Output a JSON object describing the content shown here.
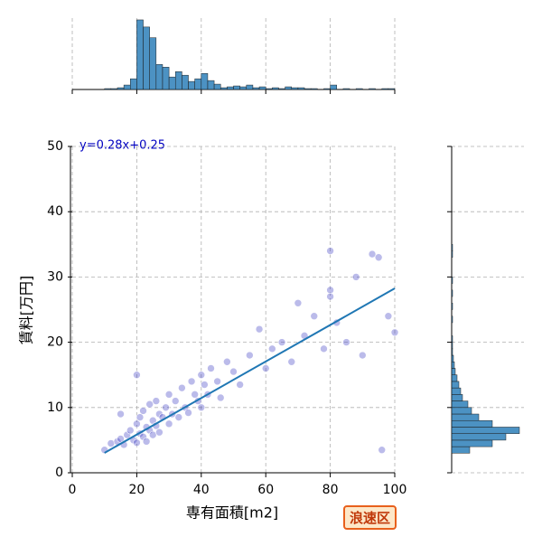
{
  "chart_data": [
    {
      "type": "scatter",
      "xlabel": "専有面積[m2]",
      "ylabel": "賃料[万円]",
      "xlim": [
        0,
        100
      ],
      "ylim": [
        0,
        50
      ],
      "xticks": [
        0,
        20,
        40,
        60,
        80,
        100
      ],
      "yticks": [
        0,
        10,
        20,
        30,
        40,
        50
      ],
      "grid": true,
      "series": [
        {
          "color": "#3b3bc4",
          "x": [
            10,
            12,
            14,
            15,
            16,
            17,
            18,
            19,
            20,
            20,
            21,
            21,
            22,
            22,
            23,
            23,
            24,
            24,
            25,
            25,
            26,
            26,
            27,
            27,
            28,
            29,
            30,
            30,
            31,
            32,
            33,
            34,
            35,
            36,
            37,
            38,
            39,
            40,
            40,
            41,
            42,
            43,
            45,
            46,
            48,
            50,
            52,
            55,
            58,
            60,
            62,
            65,
            68,
            70,
            72,
            75,
            78,
            80,
            80,
            80,
            82,
            85,
            88,
            90,
            93,
            95,
            96,
            98,
            100,
            20,
            15
          ],
          "values": [
            3.5,
            4.5,
            4.8,
            5.2,
            4.3,
            5.8,
            6.5,
            5,
            7.5,
            4.6,
            6,
            8.5,
            5.5,
            9.5,
            7,
            4.8,
            6.5,
            10.5,
            8,
            5.8,
            7.2,
            11,
            9,
            6.2,
            8.5,
            10,
            7.5,
            12,
            9,
            11,
            8.5,
            13,
            10,
            9.2,
            14,
            12,
            11,
            15,
            10,
            13.5,
            12,
            16,
            14,
            11.5,
            17,
            15.5,
            13.5,
            18,
            22,
            16,
            19,
            20,
            17,
            26,
            21,
            24,
            19,
            34,
            28,
            27,
            23,
            20,
            30,
            18,
            33.5,
            33,
            3.5,
            24,
            21.5,
            15,
            9
          ]
        }
      ],
      "regression": {
        "x": [
          10,
          100
        ],
        "values": [
          3.05,
          28.25
        ],
        "color": "#1f77b4",
        "label": "y=0.28x+0.25"
      },
      "badge": "浪速区"
    },
    {
      "type": "histogram",
      "orientation": "vertical",
      "color": "#1f77b4",
      "ylim": [
        0,
        80
      ],
      "bins": [
        10,
        12,
        14,
        16,
        18,
        20,
        22,
        24,
        26,
        28,
        30,
        32,
        34,
        36,
        38,
        40,
        42,
        44,
        46,
        48,
        50,
        52,
        54,
        56,
        58,
        60,
        62,
        64,
        66,
        68,
        70,
        72,
        74,
        76,
        78,
        80,
        82,
        84,
        86,
        88,
        90,
        92,
        94,
        96,
        98,
        100
      ],
      "values": [
        1,
        1,
        2,
        5,
        12,
        78,
        70,
        58,
        28,
        25,
        14,
        20,
        16,
        9,
        12,
        18,
        10,
        6,
        2,
        3,
        4,
        3,
        5,
        2,
        3,
        1,
        2,
        1,
        3,
        2,
        2,
        1,
        1,
        0,
        1,
        5,
        0,
        1,
        0,
        1,
        0,
        1,
        0,
        1,
        1
      ]
    },
    {
      "type": "histogram",
      "orientation": "horizontal",
      "color": "#1f77b4",
      "xlim": [
        0,
        80
      ],
      "bins": [
        3,
        4,
        5,
        6,
        7,
        8,
        9,
        10,
        11,
        12,
        13,
        14,
        15,
        16,
        17,
        18,
        19,
        20,
        21,
        22,
        23,
        24,
        25,
        26,
        27,
        28,
        29,
        30,
        31,
        32,
        33,
        34,
        35
      ],
      "values": [
        20,
        45,
        60,
        75,
        45,
        30,
        22,
        18,
        12,
        10,
        8,
        6,
        4,
        3,
        2,
        1,
        1,
        1,
        0,
        0,
        1,
        0,
        1,
        0,
        1,
        0,
        1,
        0,
        0,
        0,
        1,
        1
      ]
    }
  ]
}
